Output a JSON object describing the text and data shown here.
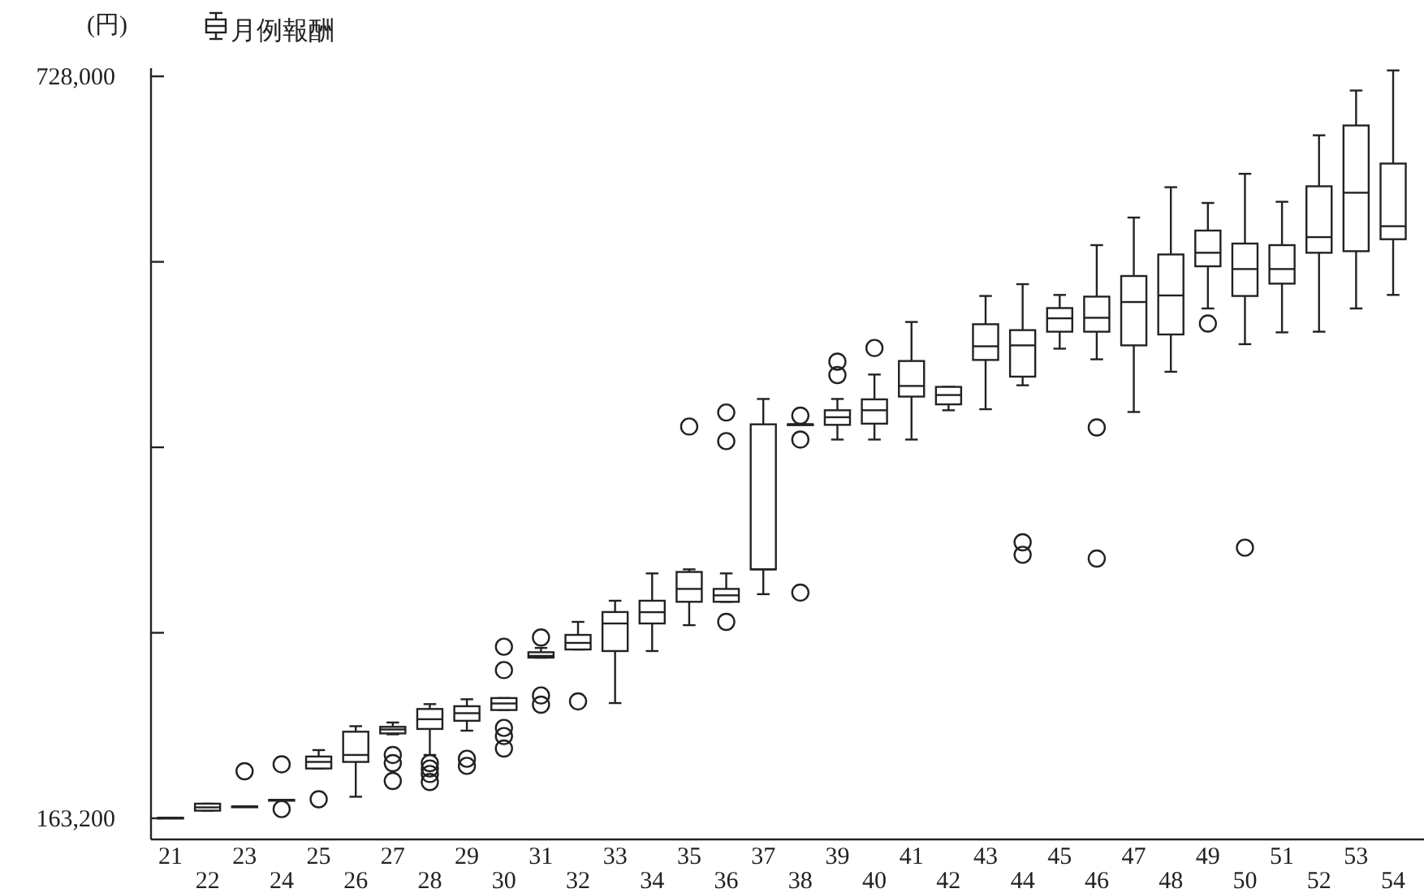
{
  "chart_data": {
    "type": "box",
    "ylabel": "(円)",
    "legend": "top left",
    "categories": [
      "21",
      "22",
      "23",
      "24",
      "25",
      "26",
      "27",
      "28",
      "29",
      "30",
      "31",
      "32",
      "33",
      "34",
      "35",
      "36",
      "37",
      "38",
      "39",
      "40",
      "41",
      "42",
      "43",
      "44",
      "45",
      "46",
      "47",
      "48",
      "49",
      "50",
      "51",
      "52",
      "53",
      "54"
    ],
    "ylim": [
      147100,
      734200
    ],
    "yticks": [
      {
        "value": 163200,
        "label": "163,200"
      },
      {
        "value": 304400,
        "label": null
      },
      {
        "value": 445600,
        "label": null
      },
      {
        "value": 586800,
        "label": null
      },
      {
        "value": 728000,
        "label": "728,000"
      }
    ],
    "series": [
      {
        "name": "月例報酬",
        "color": "#222222",
        "boxes": [
          {
            "low": 163600,
            "q1": 163600,
            "median": 163600,
            "q3": 163600,
            "high": 163600
          },
          {
            "low": 169000,
            "q1": 169000,
            "median": 171500,
            "q3": 174300,
            "high": 174300
          },
          {
            "low": 172200,
            "q1": 172200,
            "median": 172200,
            "q3": 172200,
            "high": 172200,
            "outliers": [
              199000
            ]
          },
          {
            "low": 177200,
            "q1": 177200,
            "median": 177200,
            "q3": 177200,
            "high": 177200,
            "outliers": [
              170200,
              204300
            ]
          },
          {
            "low": 201100,
            "q1": 201100,
            "median": 206100,
            "q3": 210200,
            "high": 215100,
            "outliers": [
              177700
            ]
          },
          {
            "low": 179600,
            "q1": 206100,
            "median": 211400,
            "q3": 229100,
            "high": 233300
          },
          {
            "low": 227100,
            "q1": 227800,
            "median": 230800,
            "q3": 232800,
            "high": 236100,
            "outliers": [
              211400,
              205200,
              191600
            ]
          },
          {
            "low": 211400,
            "q1": 231200,
            "median": 238600,
            "q3": 246400,
            "high": 250100,
            "outliers": [
              205200,
              201100,
              196900,
              190800
            ]
          },
          {
            "low": 229900,
            "q1": 237400,
            "median": 243200,
            "q3": 248500,
            "high": 253800,
            "outliers": [
              208500,
              203100
            ]
          },
          {
            "low": 245600,
            "q1": 245600,
            "median": 250600,
            "q3": 254700,
            "high": 254700,
            "outliers": [
              293800,
              276000,
              232000,
              225800,
              216300
            ]
          },
          {
            "low": 285500,
            "q1": 285500,
            "median": 286800,
            "q3": 289600,
            "high": 292900,
            "outliers": [
              300800,
              256700,
              249700
            ]
          },
          {
            "low": 291700,
            "q1": 291700,
            "median": 296700,
            "q3": 302800,
            "high": 312700,
            "outliers": [
              252200
            ]
          },
          {
            "low": 250900,
            "q1": 290500,
            "median": 311500,
            "q3": 320200,
            "high": 328800
          },
          {
            "low": 290500,
            "q1": 311500,
            "median": 320100,
            "q3": 328800,
            "high": 349600
          },
          {
            "low": 310200,
            "q1": 328000,
            "median": 337800,
            "q3": 350700,
            "high": 352700,
            "outliers": [
              461400
            ]
          },
          {
            "low": 328000,
            "q1": 328000,
            "median": 332900,
            "q3": 337800,
            "high": 349600,
            "outliers": [
              472100,
              450300,
              312700
            ]
          },
          {
            "low": 333800,
            "q1": 352700,
            "median": 352700,
            "q3": 463100,
            "high": 482400
          },
          {
            "low": 463100,
            "q1": 463100,
            "median": 463100,
            "q3": 463100,
            "high": 463100,
            "outliers": [
              469700,
              451500,
              335000
            ]
          },
          {
            "low": 451500,
            "q1": 462700,
            "median": 468500,
            "q3": 473800,
            "high": 482400,
            "outliers": [
              510800,
              500600
            ]
          },
          {
            "low": 451500,
            "q1": 463600,
            "median": 473800,
            "q3": 482100,
            "high": 501000,
            "outliers": [
              521200
            ]
          },
          {
            "low": 451500,
            "q1": 484200,
            "median": 492300,
            "q3": 511300,
            "high": 541000
          },
          {
            "low": 473800,
            "q1": 478300,
            "median": 485400,
            "q3": 491600,
            "high": 491600
          },
          {
            "low": 474600,
            "q1": 512100,
            "median": 522500,
            "q3": 539300,
            "high": 560800
          },
          {
            "low": 492800,
            "q1": 499400,
            "median": 523200,
            "q3": 534800,
            "high": 569800,
            "outliers": [
              373300,
              363800
            ]
          },
          {
            "low": 520700,
            "q1": 533600,
            "median": 543800,
            "q3": 551600,
            "high": 561600
          },
          {
            "low": 512600,
            "q1": 533600,
            "median": 544200,
            "q3": 560300,
            "high": 599500,
            "outliers": [
              460700,
              360900
            ]
          },
          {
            "low": 472500,
            "q1": 523200,
            "median": 556200,
            "q3": 576000,
            "high": 620500
          },
          {
            "low": 503100,
            "q1": 531500,
            "median": 561200,
            "q3": 592400,
            "high": 643600
          },
          {
            "low": 551300,
            "q1": 583400,
            "median": 593700,
            "q3": 610600,
            "high": 631600,
            "outliers": [
              539800
            ]
          },
          {
            "low": 524100,
            "q1": 560800,
            "median": 581300,
            "q3": 600700,
            "high": 653800,
            "outliers": [
              369200
            ]
          },
          {
            "low": 533100,
            "q1": 570200,
            "median": 581300,
            "q3": 599500,
            "high": 632500
          },
          {
            "low": 533600,
            "q1": 593700,
            "median": 605600,
            "q3": 644300,
            "high": 683100
          },
          {
            "low": 551300,
            "q1": 594900,
            "median": 639400,
            "q3": 690600,
            "high": 717200
          },
          {
            "low": 561600,
            "q1": 604000,
            "median": 613900,
            "q3": 661600,
            "high": 732500
          }
        ]
      }
    ]
  }
}
